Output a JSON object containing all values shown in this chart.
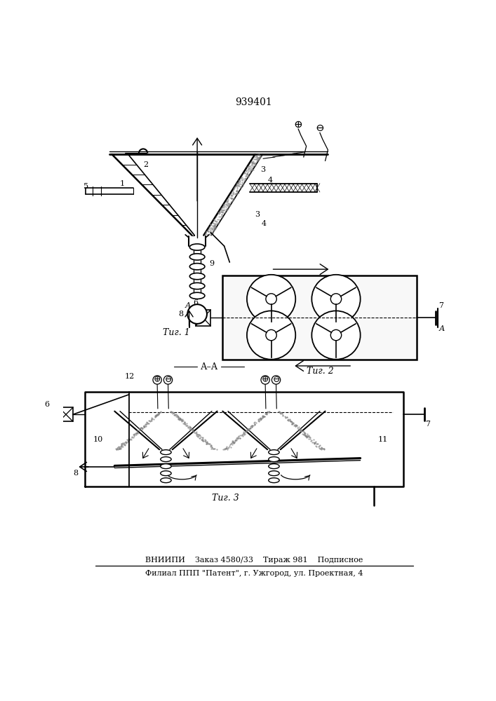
{
  "title": "939401",
  "bg_color": "#ffffff",
  "fig1_caption": "Τиг. 1",
  "fig2_caption": "Τиг. 2",
  "fig3_caption": "Τиг. 3",
  "footer_line1": "ВНИИПИ    Заказ 4580/33    Тираж 981    Подписное",
  "footer_line2": "Филиал ППП \"Патент\", г. Ужгород, ул. Проектная, 4"
}
